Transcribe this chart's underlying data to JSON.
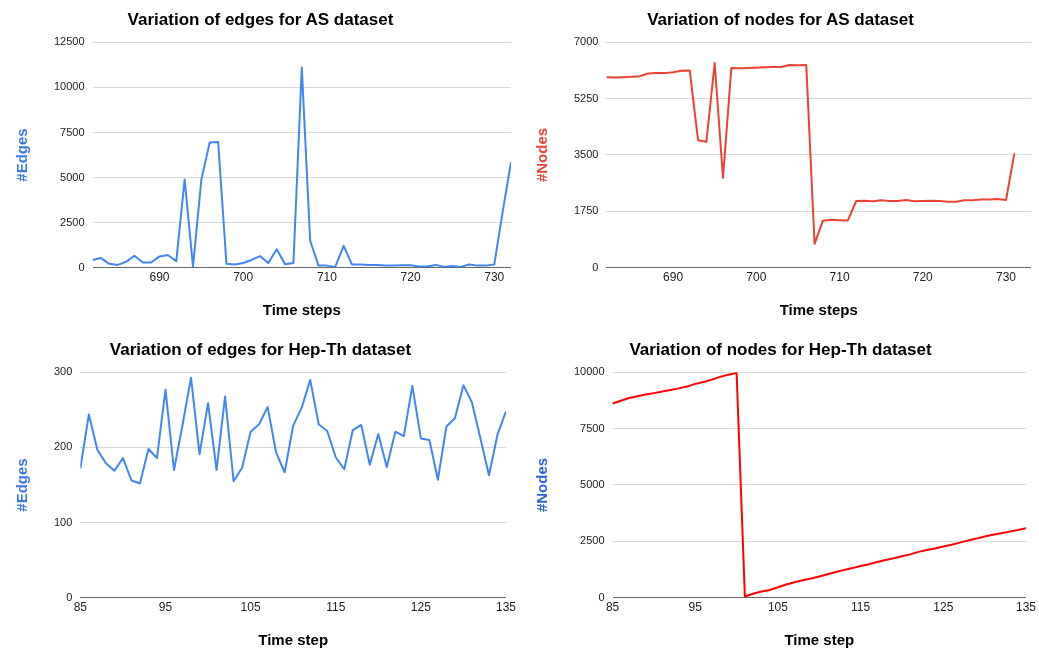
{
  "chart_data": [
    {
      "type": "line",
      "title": "Variation of edges for AS dataset",
      "xlabel": "Time steps",
      "ylabel": "#Edges",
      "grid": "y",
      "legend": false,
      "marker": "none",
      "line_style": "solid",
      "x": [
        682,
        683,
        684,
        685,
        686,
        687,
        688,
        689,
        690,
        691,
        692,
        693,
        694,
        695,
        696,
        697,
        698,
        699,
        700,
        701,
        702,
        703,
        704,
        705,
        706,
        707,
        708,
        709,
        710,
        711,
        712,
        713,
        714,
        715,
        716,
        717,
        718,
        719,
        720,
        721,
        722,
        723,
        724,
        725,
        726,
        727,
        728,
        729,
        730,
        731,
        732
      ],
      "series": [
        {
          "color": "#4285f4",
          "values": [
            425,
            530,
            210,
            150,
            320,
            660,
            280,
            280,
            620,
            700,
            360,
            4890,
            60,
            4890,
            6950,
            6970,
            210,
            170,
            255,
            425,
            640,
            255,
            1020,
            190,
            255,
            11100,
            1490,
            110,
            110,
            40,
            1210,
            170,
            170,
            150,
            150,
            110,
            110,
            130,
            130,
            60,
            60,
            150,
            40,
            85,
            40,
            170,
            110,
            110,
            170,
            3080,
            5850
          ]
        }
      ],
      "xlim": [
        682,
        732
      ],
      "xticks": [
        690,
        700,
        710,
        720,
        730
      ],
      "ylim": [
        0,
        12500
      ],
      "yticks": [
        0,
        2500,
        5000,
        7500,
        10000,
        12500
      ]
    },
    {
      "type": "line",
      "title": "Variation of nodes for AS dataset",
      "xlabel": "Time steps",
      "ylabel": "#Nodes",
      "grid": "y",
      "legend": false,
      "marker": "none",
      "line_style": "solid",
      "x": [
        682,
        683,
        684,
        685,
        686,
        687,
        688,
        689,
        690,
        691,
        692,
        693,
        694,
        695,
        696,
        697,
        698,
        699,
        700,
        701,
        702,
        703,
        704,
        705,
        706,
        707,
        708,
        709,
        710,
        711,
        712,
        713,
        714,
        715,
        716,
        717,
        718,
        719,
        720,
        721,
        722,
        723,
        724,
        725,
        726,
        727,
        728,
        729,
        730,
        731
      ],
      "series": [
        {
          "color": "#ea4335",
          "values": [
            5920,
            5910,
            5920,
            5930,
            5950,
            6035,
            6045,
            6045,
            6075,
            6120,
            6130,
            3960,
            3910,
            6360,
            2790,
            6205,
            6195,
            6205,
            6215,
            6225,
            6235,
            6235,
            6300,
            6290,
            6300,
            740,
            1460,
            1485,
            1475,
            1465,
            2070,
            2080,
            2060,
            2090,
            2070,
            2070,
            2100,
            2060,
            2070,
            2080,
            2070,
            2050,
            2050,
            2090,
            2090,
            2120,
            2120,
            2130,
            2100,
            3550
          ]
        }
      ],
      "xlim": [
        682,
        733
      ],
      "xticks": [
        690,
        700,
        710,
        720,
        730
      ],
      "ylim": [
        0,
        7000
      ],
      "yticks": [
        0,
        1750,
        3500,
        5250,
        7000
      ]
    },
    {
      "type": "line",
      "title": "Variation of edges for Hep-Th dataset",
      "xlabel": "Time step",
      "ylabel": "#Edges",
      "grid": "y",
      "legend": false,
      "marker": "none",
      "line_style": "solid",
      "x": [
        85,
        86,
        87,
        88,
        89,
        90,
        91,
        92,
        93,
        94,
        95,
        96,
        97,
        98,
        99,
        100,
        101,
        102,
        103,
        104,
        105,
        106,
        107,
        108,
        109,
        110,
        111,
        112,
        113,
        114,
        115,
        116,
        117,
        118,
        119,
        120,
        121,
        122,
        123,
        124,
        125,
        126,
        127,
        128,
        129,
        130,
        131,
        132,
        133,
        134,
        135
      ],
      "series": [
        {
          "color": "#4285f4",
          "values": [
            172,
            244,
            197,
            179,
            169,
            186,
            156,
            152,
            198,
            186,
            277,
            170,
            230,
            293,
            191,
            259,
            170,
            268,
            155,
            173,
            221,
            231,
            254,
            193,
            167,
            229,
            253,
            290,
            231,
            222,
            187,
            171,
            223,
            230,
            177,
            218,
            174,
            221,
            215,
            282,
            212,
            210,
            157,
            228,
            239,
            283,
            260,
            212,
            163,
            217,
            248
          ]
        }
      ],
      "xlim": [
        85,
        135
      ],
      "xticks": [
        85,
        95,
        105,
        115,
        125,
        135
      ],
      "ylim": [
        0,
        300
      ],
      "yticks": [
        0,
        100,
        200,
        300
      ]
    },
    {
      "type": "line",
      "title": "Variation of nodes for Hep-Th dataset",
      "xlabel": "Time step",
      "ylabel": "#Nodes",
      "grid": "y",
      "legend": false,
      "marker": "none",
      "line_style": "solid",
      "x": [
        85,
        86,
        87,
        88,
        89,
        90,
        91,
        92,
        93,
        94,
        95,
        96,
        97,
        98,
        99,
        100,
        101,
        102,
        103,
        104,
        105,
        106,
        107,
        108,
        109,
        110,
        111,
        112,
        113,
        114,
        115,
        116,
        117,
        118,
        119,
        120,
        121,
        122,
        123,
        124,
        125,
        126,
        127,
        128,
        129,
        130,
        131,
        132,
        133,
        134,
        135
      ],
      "series": [
        {
          "color": "#ff0000",
          "values": [
            8620,
            8740,
            8860,
            8945,
            9015,
            9080,
            9150,
            9220,
            9290,
            9370,
            9490,
            9575,
            9680,
            9800,
            9900,
            9985,
            50,
            170,
            270,
            340,
            460,
            580,
            680,
            770,
            850,
            940,
            1040,
            1140,
            1230,
            1310,
            1400,
            1480,
            1580,
            1670,
            1750,
            1840,
            1920,
            2030,
            2110,
            2180,
            2270,
            2350,
            2440,
            2540,
            2620,
            2710,
            2790,
            2860,
            2930,
            3000,
            3080
          ]
        }
      ],
      "xlim": [
        85,
        135
      ],
      "xticks": [
        85,
        95,
        105,
        115,
        125,
        135
      ],
      "ylim": [
        0,
        10000
      ],
      "yticks": [
        0,
        2500,
        5000,
        7500,
        10000
      ]
    }
  ]
}
